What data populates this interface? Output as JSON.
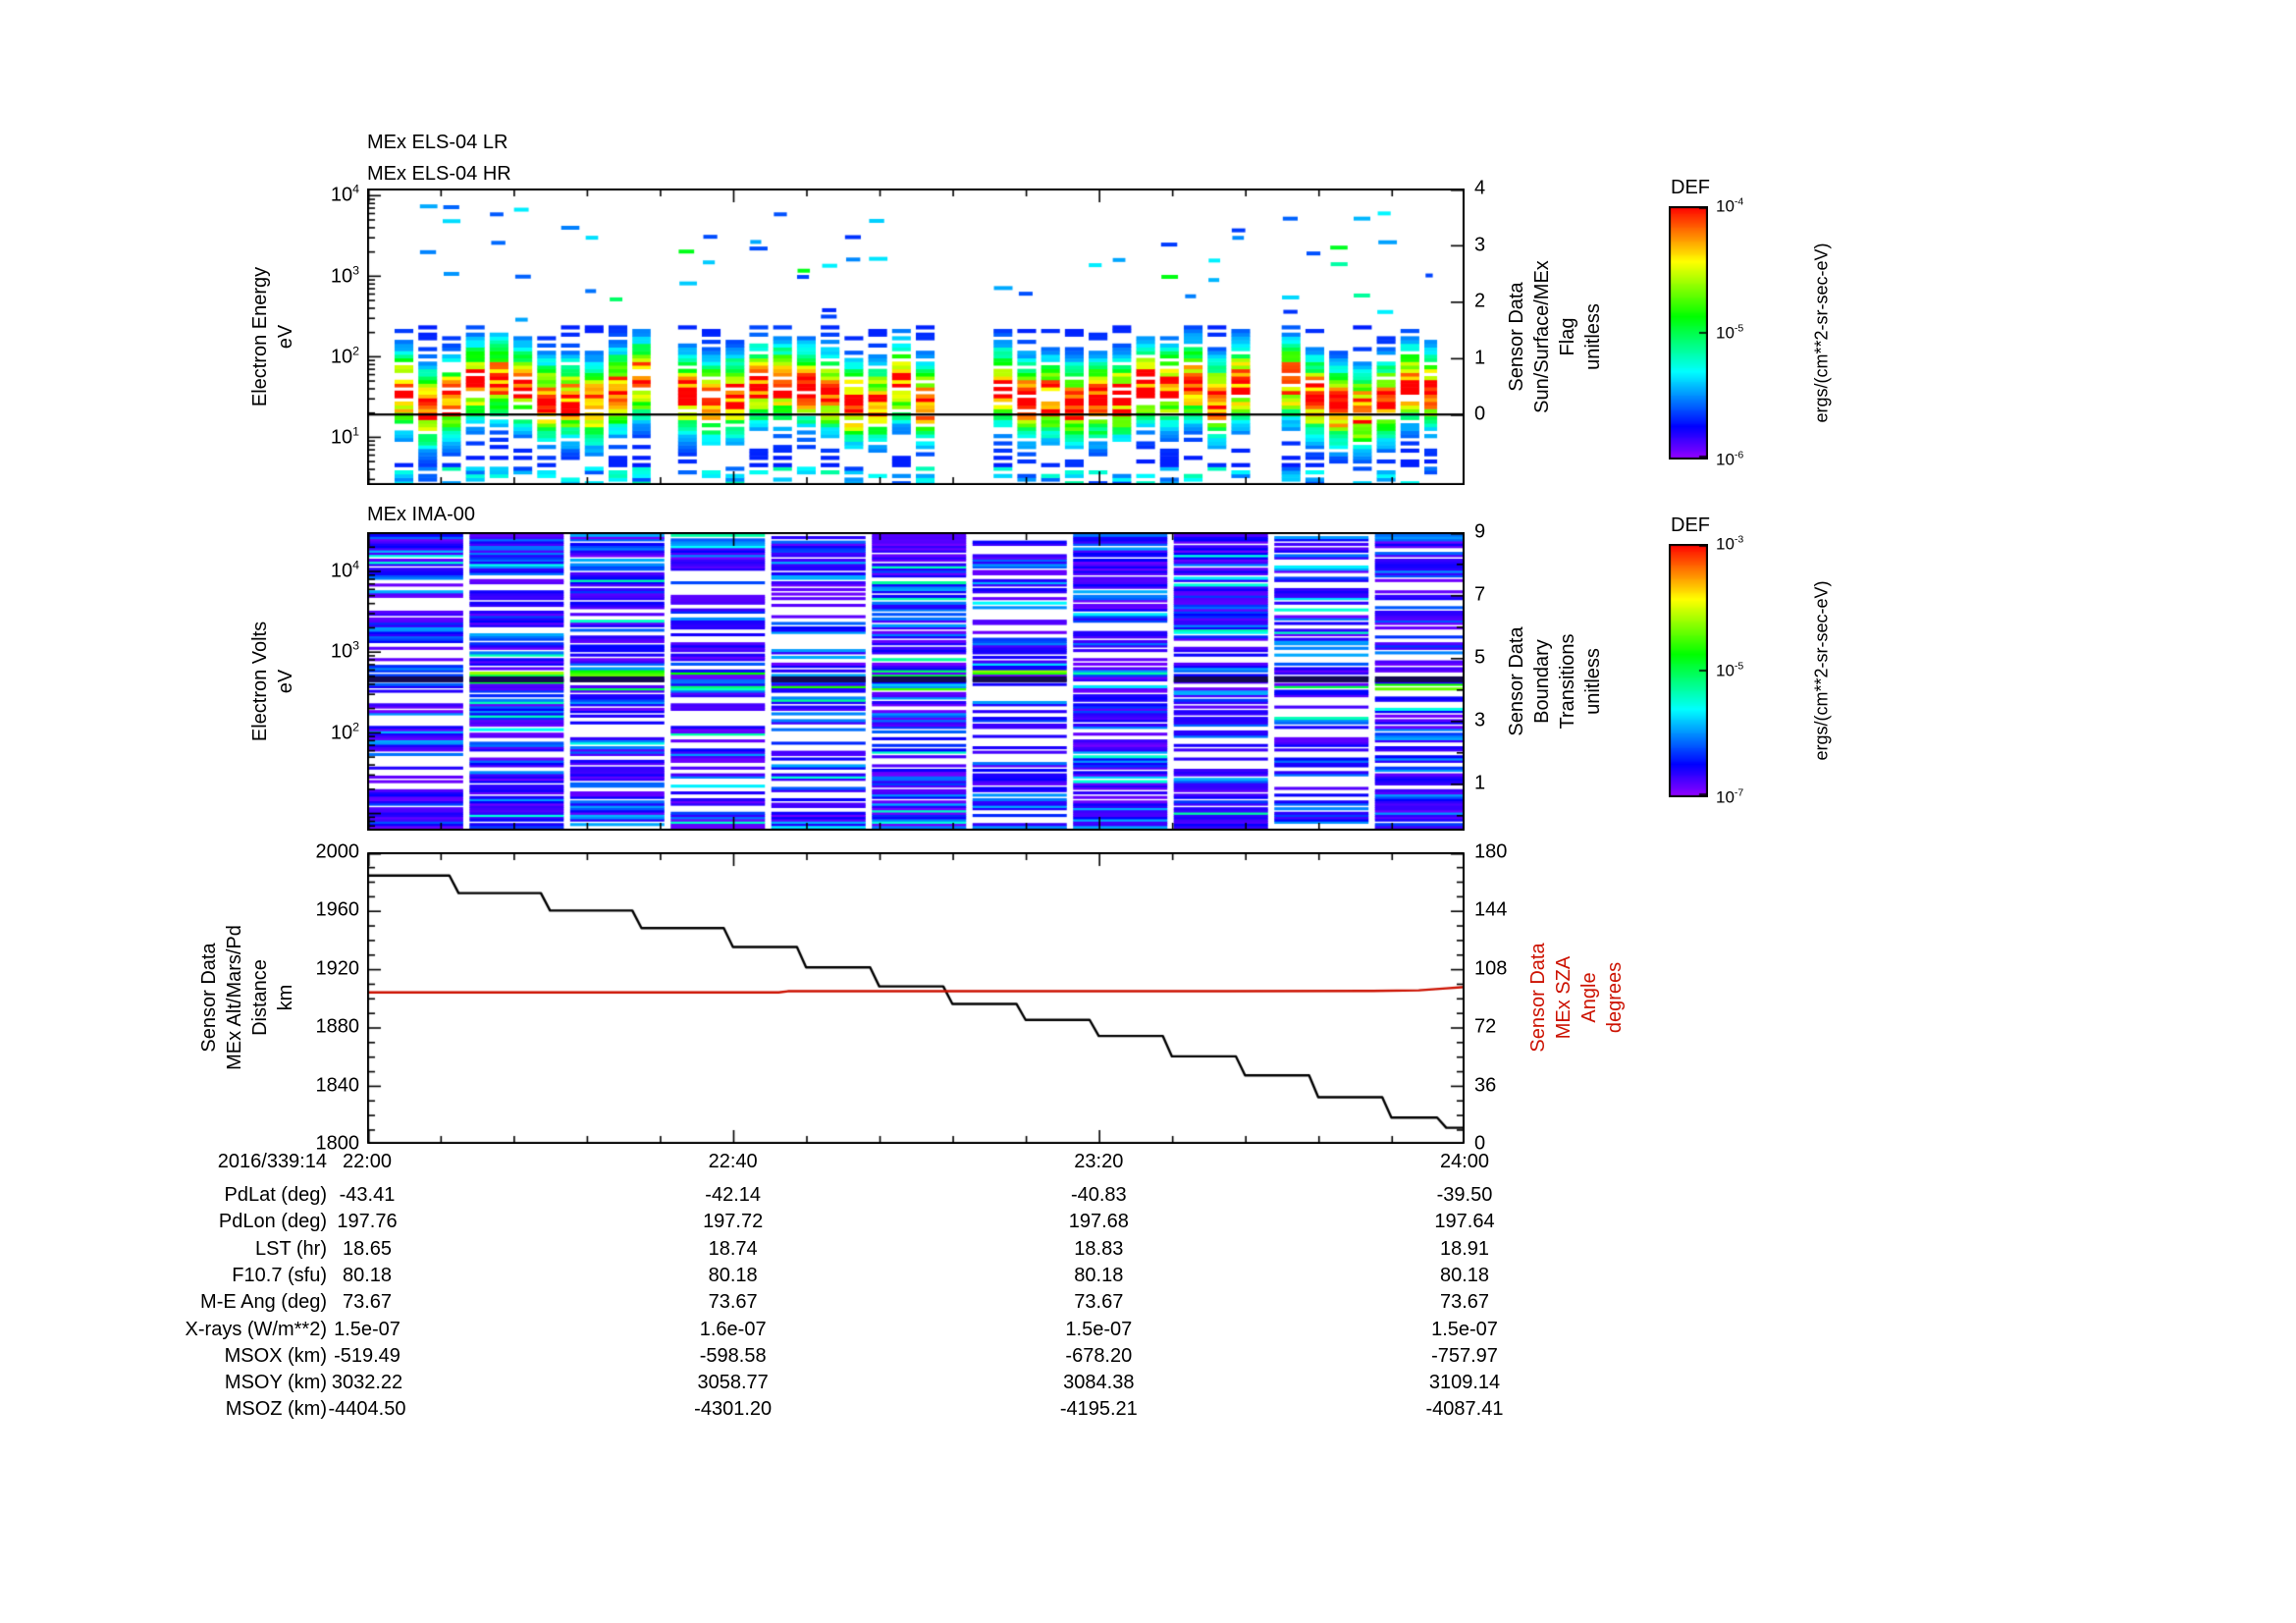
{
  "titles": {
    "els_lr": "MEx ELS-04 LR",
    "els_hr": "MEx ELS-04 HR",
    "ima": "MEx IMA-00"
  },
  "panels": {
    "els": {
      "left_label": "Electron Energy\neV",
      "yticks": [
        "10^4",
        "10^3",
        "10^2",
        "10^1"
      ],
      "right_label": "Sensor Data\nSun/Surface/MEx\nFlag\nunitless",
      "right_ticks": [
        "4",
        "3",
        "2",
        "1",
        "0"
      ]
    },
    "ima": {
      "left_label": "Electron Volts\neV",
      "yticks": [
        "10^4",
        "10^3",
        "10^2"
      ],
      "right_label": "Sensor Data\nBoundary\nTransitions\nunitless",
      "right_ticks": [
        "9",
        "7",
        "5",
        "3",
        "1"
      ]
    },
    "alt": {
      "left_label": "Sensor Data\nMEx Alt/Mars/Pd\nDistance\nkm",
      "yticks": [
        "2000",
        "1960",
        "1920",
        "1880",
        "1840",
        "1800"
      ],
      "right_label": "Sensor Data\nMEx SZA\nAngle\ndegrees",
      "right_label_color": "#cc1100",
      "right_ticks": [
        "180",
        "144",
        "108",
        "72",
        "36",
        "0"
      ]
    }
  },
  "colorbars": [
    {
      "title": "DEF",
      "ticks": [
        "10^-4",
        "10^-5",
        "10^-6"
      ],
      "units": "ergs/(cm**2-sr-sec-eV)"
    },
    {
      "title": "DEF",
      "ticks": [
        "10^-3",
        "10^-5",
        "10^-7"
      ],
      "units": "ergs/(cm**2-sr-sec-eV)"
    }
  ],
  "table": {
    "rows": [
      {
        "label": "2016/339:14",
        "values": [
          "22:00",
          "22:40",
          "23:20",
          "24:00"
        ]
      },
      {
        "label": "PdLat (deg)",
        "values": [
          "-43.41",
          "-42.14",
          "-40.83",
          "-39.50"
        ]
      },
      {
        "label": "PdLon (deg)",
        "values": [
          "197.76",
          "197.72",
          "197.68",
          "197.64"
        ]
      },
      {
        "label": "LST (hr)",
        "values": [
          "18.65",
          "18.74",
          "18.83",
          "18.91"
        ]
      },
      {
        "label": "F10.7 (sfu)",
        "values": [
          "80.18",
          "80.18",
          "80.18",
          "80.18"
        ]
      },
      {
        "label": "M-E Ang (deg)",
        "values": [
          "73.67",
          "73.67",
          "73.67",
          "73.67"
        ]
      },
      {
        "label": "X-rays (W/m**2)",
        "values": [
          "1.5e-07",
          "1.6e-07",
          "1.5e-07",
          "1.5e-07"
        ]
      },
      {
        "label": "MSOX (km)",
        "values": [
          "-519.49",
          "-598.58",
          "-678.20",
          "-757.97"
        ]
      },
      {
        "label": "MSOY (km)",
        "values": [
          "3032.22",
          "3058.77",
          "3084.38",
          "3109.14"
        ]
      },
      {
        "label": "MSOZ (km)",
        "values": [
          "-4404.50",
          "-4301.20",
          "-4195.21",
          "-4087.41"
        ]
      }
    ]
  },
  "chart_data": [
    {
      "type": "heatmap",
      "name": "els_electron_spectrogram",
      "title": "MEx ELS-04 LR / MEx ELS-04 HR",
      "x_axis": {
        "ticks": [
          "22:00",
          "22:40",
          "23:20",
          "24:00"
        ],
        "range_minutes": [
          0,
          120
        ],
        "date": "2016/339:14"
      },
      "y_axis": {
        "label": "Electron Energy eV",
        "scale": "log",
        "range": [
          2.5,
          12000
        ],
        "ticks": [
          "10^1",
          "10^2",
          "10^3",
          "10^4"
        ]
      },
      "z_axis": {
        "label": "DEF",
        "units": "ergs/(cm**2-sr-sec-eV)",
        "scale": "log",
        "range": [
          "10^-6",
          "10^-4"
        ]
      },
      "right_axis": {
        "label": "Sensor Data Sun/Surface/MEx Flag unitless",
        "ticks": [
          4,
          3,
          2,
          1,
          0
        ],
        "flag_series_value": 0
      },
      "burst_windows_min": [
        [
          3,
          31
        ],
        [
          34,
          63
        ],
        [
          68.5,
          97
        ],
        [
          100,
          117
        ]
      ],
      "main_band_ev": [
        4,
        230
      ],
      "core_band_ev": [
        15,
        70
      ],
      "sparse_dash_band_ev": [
        250,
        8000
      ],
      "description": "Bursty vertical stripes of intense flux (red/orange core 15-70 eV, green/cyan fringes 4-230 eV) separated by data gaps; scattered blue/cyan dashes 250-8000 eV; black flag trace constant at 0."
    },
    {
      "type": "heatmap",
      "name": "ima_ion_spectrogram",
      "title": "MEx IMA-00",
      "x_axis": {
        "ticks": [
          "22:00",
          "22:40",
          "23:20",
          "24:00"
        ],
        "range_minutes": [
          0,
          120
        ]
      },
      "y_axis": {
        "label": "Electron Volts eV",
        "scale": "log",
        "range": [
          6,
          30000
        ],
        "ticks": [
          "10^2",
          "10^3",
          "10^4"
        ]
      },
      "z_axis": {
        "label": "DEF",
        "units": "ergs/(cm**2-sr-sec-eV)",
        "scale": "log",
        "range": [
          "10^-7",
          "10^-3"
        ]
      },
      "right_axis": {
        "label": "Sensor Data Boundary Transitions unitless",
        "ticks": [
          9,
          7,
          5,
          3,
          1
        ]
      },
      "block_windows_min": [
        [
          0,
          10.5
        ],
        [
          11.2,
          21.5
        ],
        [
          22.2,
          32.5
        ],
        [
          33.2,
          43.5
        ],
        [
          44.2,
          54.5
        ],
        [
          55.2,
          65.5
        ],
        [
          66.2,
          76.5
        ],
        [
          77.2,
          87.5
        ],
        [
          88.2,
          98.5
        ],
        [
          99.2,
          109.5
        ],
        [
          110.2,
          120
        ]
      ],
      "enhanced_line_ev": 450,
      "description": "Blocks of dense thin horizontal purple/indigo and blue lines spanning 6 eV to 30 keV with narrow white gaps between blocks; occasional cyan/green enhancements and a dark band near 450 eV."
    },
    {
      "type": "line",
      "name": "altitude_and_sza",
      "series": [
        {
          "name": "Sensor Data MEx Alt/Mars/Pd Distance km",
          "color": "#000000",
          "axis": "left",
          "x_min": [
            0,
            9,
            10,
            19,
            20,
            29,
            30,
            39,
            40,
            47,
            48,
            55,
            56,
            63,
            64,
            71,
            72,
            79,
            80,
            87,
            88,
            95,
            96,
            103,
            104,
            111,
            112,
            117,
            118,
            120
          ],
          "y_km": [
            1984,
            1984,
            1972,
            1972,
            1960,
            1960,
            1948,
            1948,
            1935,
            1935,
            1921,
            1921,
            1908,
            1908,
            1896,
            1896,
            1885,
            1885,
            1874,
            1874,
            1860,
            1860,
            1847,
            1847,
            1832,
            1832,
            1818,
            1818,
            1811,
            1811
          ]
        },
        {
          "name": "Sensor Data MEx SZA Angle degrees",
          "color": "#cc1100",
          "axis": "right",
          "x_min": [
            0,
            45,
            46,
            93,
            94,
            110,
            115,
            118,
            120
          ],
          "y_deg": [
            93.5,
            93.5,
            94.2,
            94.2,
            94.2,
            94.4,
            94.8,
            96.0,
            96.8
          ]
        }
      ],
      "left_axis": {
        "range": [
          1800,
          2000
        ],
        "ticks": [
          2000,
          1960,
          1920,
          1880,
          1840,
          1800
        ]
      },
      "right_axis": {
        "range": [
          0,
          180
        ],
        "ticks": [
          180,
          144,
          108,
          72,
          36,
          0
        ]
      },
      "x_axis": {
        "ticks": [
          "22:00",
          "22:40",
          "23:20",
          "24:00"
        ],
        "range_minutes": [
          0,
          120
        ]
      }
    }
  ]
}
